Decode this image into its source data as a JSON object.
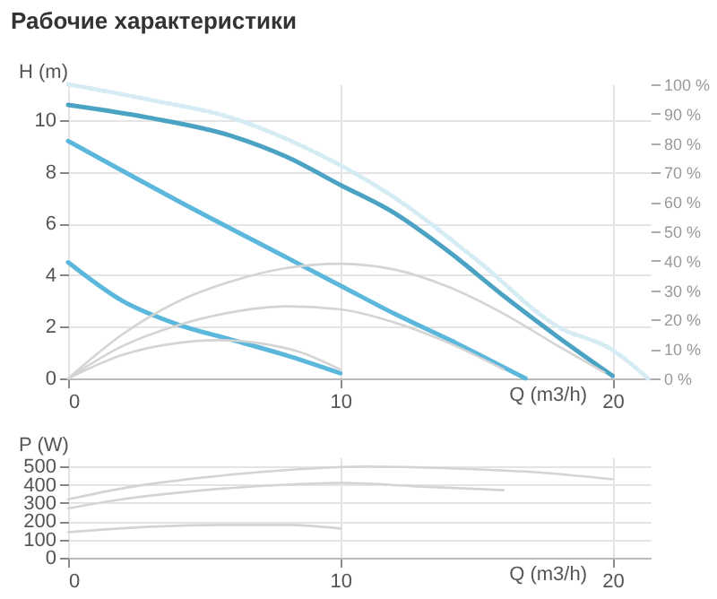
{
  "chart_data": [
    {
      "type": "line",
      "title": "Рабочие характеристики",
      "xlabel": "Q (m3/h)",
      "ylabel": "H (m)",
      "xlim": [
        0,
        21.4
      ],
      "xticks": [
        0,
        10,
        20
      ],
      "ylim": [
        0,
        11.4
      ],
      "yticks": [
        0,
        2,
        4,
        6,
        8,
        10
      ],
      "y2lim": [
        0,
        100
      ],
      "y2ticks": [
        {
          "value": 0,
          "label": "0 %"
        },
        {
          "value": 10,
          "label": "10 %"
        },
        {
          "value": 20,
          "label": "20 %"
        },
        {
          "value": 30,
          "label": "30 %"
        },
        {
          "value": 40,
          "label": "40 %"
        },
        {
          "value": 50,
          "label": "50 %"
        },
        {
          "value": 60,
          "label": "60 %"
        },
        {
          "value": 70,
          "label": "70 %"
        },
        {
          "value": 80,
          "label": "80 %"
        },
        {
          "value": 90,
          "label": "90 %"
        },
        {
          "value": 100,
          "label": "100 %"
        }
      ],
      "grid": true,
      "series": [
        {
          "color": "#d6ecf4",
          "line_style": "dotted",
          "x": [
            0,
            3,
            6,
            9,
            12,
            15,
            18,
            20,
            21.3
          ],
          "values": [
            11.4,
            10.8,
            10.1,
            8.8,
            7.0,
            4.6,
            2.0,
            1.1,
            0
          ]
        },
        {
          "color": "#4ba3c3",
          "x": [
            0,
            3,
            6,
            8,
            10,
            12,
            14,
            16,
            18,
            20
          ],
          "values": [
            10.6,
            10.1,
            9.4,
            8.6,
            7.5,
            6.4,
            4.9,
            3.2,
            1.6,
            0.1
          ]
        },
        {
          "color": "#5bb8dc",
          "x": [
            0,
            4,
            8,
            10,
            12,
            14,
            16.8
          ],
          "values": [
            9.2,
            6.9,
            4.7,
            3.6,
            2.5,
            1.5,
            0
          ]
        },
        {
          "color": "#5bb8dc",
          "x": [
            0,
            2,
            4,
            6,
            8,
            10
          ],
          "values": [
            4.5,
            3.0,
            2.1,
            1.5,
            0.9,
            0.2
          ]
        },
        {
          "color": "#d4d4d4",
          "axis": "y2",
          "x": [
            0,
            2,
            4,
            6,
            8,
            10,
            12,
            14,
            16,
            18,
            19.7
          ],
          "values": [
            0,
            15,
            26,
            33,
            37.5,
            39,
            37,
            31,
            22,
            11,
            2
          ]
        },
        {
          "color": "#d4d4d4",
          "axis": "y2",
          "x": [
            0,
            2,
            4,
            6,
            8,
            10,
            12,
            14,
            16
          ],
          "values": [
            0,
            11,
            18,
            22.5,
            24.5,
            23.5,
            19,
            12,
            3
          ]
        },
        {
          "color": "#d4d4d4",
          "axis": "y2",
          "x": [
            0,
            2,
            4,
            5.5,
            7,
            8.5,
            10
          ],
          "values": [
            0,
            8,
            12,
            13,
            12,
            9,
            3
          ]
        }
      ]
    },
    {
      "type": "line",
      "xlabel": "Q (m3/h)",
      "ylabel": "P (W)",
      "xlim": [
        0,
        21.4
      ],
      "xticks": [
        0,
        10,
        20
      ],
      "ylim": [
        0,
        550
      ],
      "yticks": [
        0,
        100,
        200,
        300,
        400,
        500
      ],
      "grid": true,
      "series": [
        {
          "color": "#d4d4d4",
          "x": [
            0,
            2,
            5,
            8,
            11,
            14,
            17,
            20
          ],
          "values": [
            320,
            380,
            440,
            480,
            500,
            490,
            470,
            430
          ]
        },
        {
          "color": "#d4d4d4",
          "x": [
            0,
            2,
            5,
            8,
            10,
            13,
            16
          ],
          "values": [
            270,
            320,
            370,
            400,
            410,
            390,
            370
          ]
        },
        {
          "color": "#d4d4d4",
          "x": [
            0,
            3,
            6,
            8,
            10
          ],
          "values": [
            140,
            170,
            180,
            180,
            160
          ]
        }
      ]
    }
  ]
}
